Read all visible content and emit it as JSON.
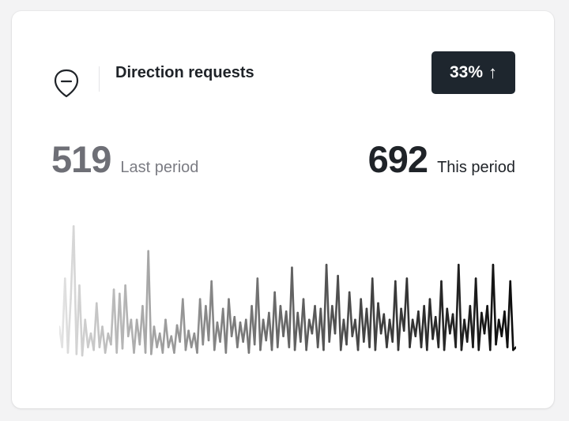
{
  "header": {
    "title": "Direction requests",
    "icon": "pin-minus-icon",
    "badge": {
      "value": "33%",
      "arrow": "↑"
    }
  },
  "stats": {
    "last": {
      "value": "519",
      "label": "Last period",
      "color": "#6e6f76"
    },
    "this": {
      "value": "692",
      "label": "This period",
      "color": "#1f2328"
    }
  },
  "chart_data": {
    "type": "line",
    "title": "",
    "xlabel": "",
    "ylabel": "",
    "ylim": [
      0,
      100
    ],
    "grid": false,
    "legend": "none",
    "color_gradient": [
      "#e6e6e6",
      "#0d0d0d"
    ],
    "values": [
      25,
      10,
      60,
      6,
      45,
      98,
      5,
      55,
      4,
      30,
      10,
      20,
      8,
      42,
      10,
      25,
      6,
      20,
      12,
      52,
      6,
      49,
      9,
      55,
      18,
      30,
      6,
      30,
      12,
      40,
      6,
      80,
      5,
      25,
      10,
      20,
      6,
      30,
      10,
      18,
      6,
      26,
      14,
      45,
      8,
      22,
      10,
      20,
      6,
      45,
      12,
      40,
      15,
      58,
      8,
      28,
      14,
      38,
      6,
      45,
      18,
      32,
      10,
      28,
      14,
      30,
      6,
      40,
      12,
      60,
      8,
      30,
      15,
      35,
      8,
      50,
      10,
      40,
      18,
      36,
      10,
      68,
      8,
      35,
      14,
      45,
      8,
      30,
      20,
      40,
      10,
      38,
      8,
      70,
      14,
      40,
      20,
      62,
      8,
      30,
      12,
      50,
      18,
      30,
      8,
      45,
      14,
      38,
      10,
      60,
      8,
      42,
      20,
      34,
      10,
      30,
      14,
      58,
      8,
      38,
      22,
      60,
      10,
      30,
      18,
      36,
      10,
      40,
      8,
      45,
      16,
      32,
      10,
      58,
      8,
      38,
      20,
      34,
      10,
      70,
      8,
      30,
      14,
      40,
      10,
      60,
      8,
      35,
      20,
      40,
      8,
      70,
      12,
      30,
      18,
      36,
      10,
      58,
      8,
      10
    ]
  }
}
